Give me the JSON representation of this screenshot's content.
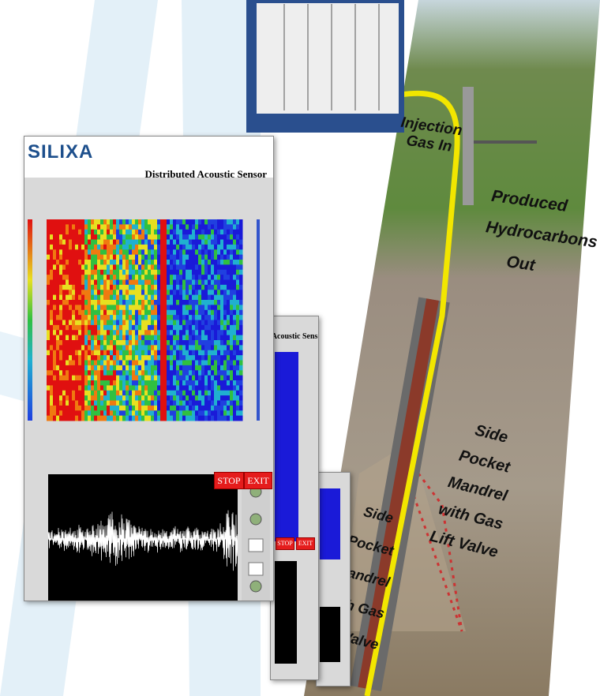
{
  "app": {
    "logo": "SILIXA",
    "title": "Distributed Acoustic Sensor",
    "buttons": [
      "STOP",
      "EXIT"
    ]
  },
  "secondary_window": {
    "title": "Distributed Acoustic Sensor",
    "buttons": [
      "STOP",
      "EXIT"
    ]
  },
  "diagram": {
    "labels": [
      "Injection Gas In",
      "Produced Hydrocarbons Out",
      "Side Pocket Mandrel with Gas Lift Valve",
      "Side Pocket Mandrel with Gas Lift Valve"
    ]
  }
}
